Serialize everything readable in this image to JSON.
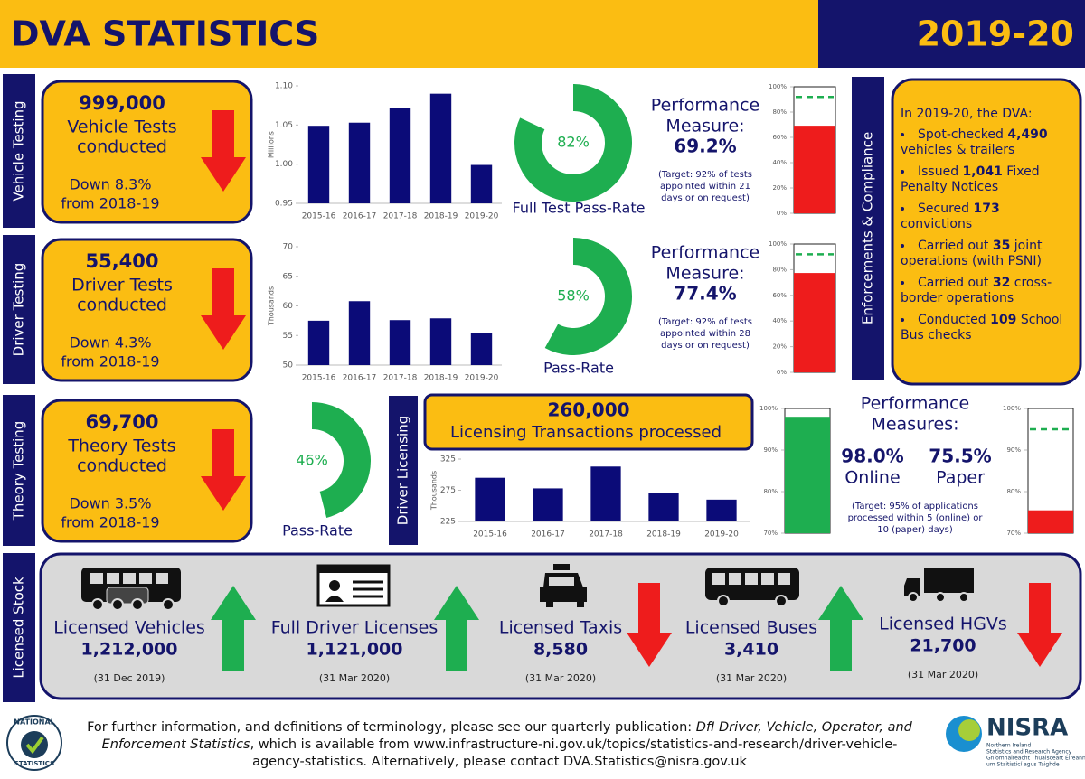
{
  "header": {
    "title": "DVA STATISTICS",
    "year": "2019-20"
  },
  "vehicle_testing": {
    "section_label": "Vehicle Testing",
    "summary": {
      "count": "999,000",
      "line1": "Vehicle Tests",
      "line2": "conducted",
      "change_line1": "Down 8.3%",
      "change_line2": "from 2018-19"
    },
    "tests_chart": {
      "type": "bar",
      "color": "#0b0b78",
      "ylabel": "Millions",
      "categories": [
        "2015-16",
        "2016-17",
        "2017-18",
        "2018-19",
        "2019-20"
      ],
      "values": [
        1.049,
        1.053,
        1.072,
        1.09,
        0.999
      ],
      "ylim": [
        0.95,
        1.1
      ],
      "yticks": [
        0.95,
        {
          "value": 1,
          "label": "1.00"
        },
        1.05,
        {
          "value": 1.1,
          "label": "1.10"
        }
      ]
    },
    "pass_rate": {
      "type": "donut",
      "value": 82,
      "value_label": "82%",
      "label": "Full Test Pass-Rate",
      "color": "#1eae50"
    },
    "performance": {
      "type": "gauge",
      "title_line1": "Performance",
      "title_line2": "Measure:",
      "value": 69.2,
      "value_label": "69.2%",
      "target": 92,
      "color": "#ee1c1c",
      "note": [
        "(Target: 92% of tests",
        "appointed within 21",
        "days or on request)"
      ],
      "ylim": [
        0,
        100
      ],
      "yticks": [
        {
          "value": 0,
          "label": "0%"
        },
        {
          "value": 20,
          "label": "20%"
        },
        {
          "value": 40,
          "label": "40%"
        },
        {
          "value": 60,
          "label": "60%"
        },
        {
          "value": 80,
          "label": "80%"
        },
        {
          "value": 100,
          "label": "100%"
        }
      ]
    }
  },
  "driver_testing": {
    "section_label": "Driver Testing",
    "summary": {
      "count": "55,400",
      "line1": "Driver Tests",
      "line2": "conducted",
      "change_line1": "Down 4.3%",
      "change_line2": "from 2018-19"
    },
    "tests_chart": {
      "type": "bar",
      "color": "#0b0b78",
      "ylabel": "Thousands",
      "categories": [
        "2015-16",
        "2016-17",
        "2017-18",
        "2018-19",
        "2019-20"
      ],
      "values": [
        57.5,
        60.8,
        57.6,
        57.9,
        55.4
      ],
      "ylim": [
        50,
        70
      ],
      "yticks": [
        50,
        55,
        60,
        65,
        70
      ]
    },
    "pass_rate": {
      "type": "donut",
      "value": 58,
      "value_label": "58%",
      "label": "Pass-Rate",
      "color": "#1eae50"
    },
    "performance": {
      "type": "gauge",
      "title_line1": "Performance",
      "title_line2": "Measure:",
      "value": 77.4,
      "value_label": "77.4%",
      "target": 92,
      "color": "#ee1c1c",
      "note": [
        "(Target: 92% of tests",
        "appointed within 28",
        "days or on request)"
      ],
      "ylim": [
        0,
        100
      ],
      "yticks": [
        {
          "value": 0,
          "label": "0%"
        },
        {
          "value": 20,
          "label": "20%"
        },
        {
          "value": 40,
          "label": "40%"
        },
        {
          "value": 60,
          "label": "60%"
        },
        {
          "value": 80,
          "label": "80%"
        },
        {
          "value": 100,
          "label": "100%"
        }
      ]
    }
  },
  "theory_testing": {
    "section_label": "Theory Testing",
    "summary": {
      "count": "69,700",
      "line1": "Theory Tests",
      "line2": "conducted",
      "change_line1": "Down 3.5%",
      "change_line2": "from 2018-19"
    },
    "pass_rate": {
      "type": "donut",
      "value": 46,
      "value_label": "46%",
      "label": "Pass-Rate",
      "color": "#1eae50"
    }
  },
  "driver_licensing": {
    "section_label": "Driver Licensing",
    "summary": {
      "count": "260,000",
      "line1": "Licensing  Transactions processed"
    },
    "transactions_chart": {
      "type": "bar",
      "color": "#0b0b78",
      "ylabel": "Thousands",
      "categories": [
        "2015-16",
        "2016-17",
        "2017-18",
        "2018-19",
        "2019-20"
      ],
      "values": [
        295,
        278,
        313,
        271,
        260
      ],
      "ylim": [
        225,
        325
      ],
      "yticks": [
        225,
        275,
        325
      ]
    },
    "performance": {
      "title_line1": "Performance",
      "title_line2": "Measures:",
      "note": [
        "(Target: 95% of applications",
        "processed within 5 (online) or",
        "10 (paper) days)"
      ],
      "ylim": [
        70,
        100
      ],
      "yticks": [
        {
          "value": 70,
          "label": "70%"
        },
        {
          "value": 80,
          "label": "80%"
        },
        {
          "value": 90,
          "label": "90%"
        },
        {
          "value": 100,
          "label": "100%"
        }
      ],
      "gauges": [
        {
          "type": "gauge",
          "name": "Online",
          "value": 98,
          "value_label": "98.0%",
          "target": 95,
          "color": "#1eae50"
        },
        {
          "type": "gauge",
          "name": "Paper",
          "value": 75.5,
          "value_label": "75.5%",
          "target": 95,
          "color": "#ee1c1c"
        }
      ]
    }
  },
  "enforcement": {
    "section_label": "Enforcements & Compliance",
    "intro": "In 2019-20, the DVA:",
    "items": [
      {
        "pre": "Spot-checked",
        "num": "4,490",
        "post": "vehicles & trailers"
      },
      {
        "pre": "Issued",
        "num": "1,041",
        "post": "Fixed Penalty Notices"
      },
      {
        "pre": "Secured",
        "num": "173",
        "post": "convictions"
      },
      {
        "pre": "Carried out",
        "num": "35",
        "post": "joint operations (with PSNI)"
      },
      {
        "pre": "Carried out",
        "num": "32",
        "post": "cross-border operations"
      },
      {
        "pre": "Conducted",
        "num": "109",
        "post": "School Bus checks"
      }
    ]
  },
  "licensed_stock": {
    "section_label": "Licensed Stock",
    "items": [
      {
        "name": "Licensed Vehicles",
        "count": "1,212,000",
        "date": "(31 Dec 2019)"
      },
      {
        "name": "Full Driver Licenses",
        "count": "1,121,000",
        "date": "(31 Mar 2020)"
      },
      {
        "name": "Licensed Taxis",
        "count": "8,580",
        "date": "(31 Mar 2020)"
      },
      {
        "name": "Licensed Buses",
        "count": "3,410",
        "date": "(31 Mar 2020)"
      },
      {
        "name": "Licensed HGVs",
        "count": "21,700",
        "date": "(31 Mar 2020)"
      }
    ]
  },
  "footer": {
    "text1": "For further information, and definitions of terminology, please see our quarterly publication: ",
    "publication": "DfI Driver, Vehicle, Operator, and Enforcement Statistics",
    "text2": ", which is available from www.infrastructure-ni.gov.uk/topics/statistics-and-research/driver-vehicle-agency-statistics.  Alternatively, please contact DVA.Statistics@nisra.gov.uk"
  },
  "logos": {
    "national_statistics": [
      "NATIONAL",
      "STATISTICS"
    ],
    "nisra": {
      "name": "NISRA",
      "line1": "Northern Ireland",
      "line2": "Statistics and Research Agency",
      "line3": "Gníomhaireacht Thuaisceart Éireann",
      "line4": "um Staitisticí agus Taighde"
    }
  }
}
